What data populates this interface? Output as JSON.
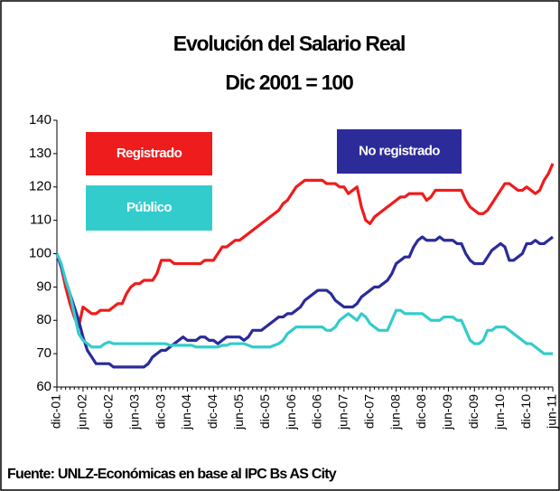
{
  "chart_data": {
    "type": "line",
    "title": "Evolución del Salario Real",
    "subtitle": "Dic 2001 = 100",
    "source": "Fuente: UNLZ-Económicas en base al IPC Bs AS City",
    "ylim": [
      60,
      140
    ],
    "yticks": [
      60,
      70,
      80,
      90,
      100,
      110,
      120,
      130,
      140
    ],
    "categories": [
      "dic-01",
      null,
      null,
      null,
      null,
      null,
      "jun-02",
      null,
      null,
      null,
      null,
      null,
      "dic-02",
      null,
      null,
      null,
      null,
      null,
      "jun-03",
      null,
      null,
      null,
      null,
      null,
      "dic-03",
      null,
      null,
      null,
      null,
      null,
      "jun-04",
      null,
      null,
      null,
      null,
      null,
      "dic-04",
      null,
      null,
      null,
      null,
      null,
      "jun-05",
      null,
      null,
      null,
      null,
      null,
      "dic-05",
      null,
      null,
      null,
      null,
      null,
      "jun-06",
      null,
      null,
      null,
      null,
      null,
      "dic-06",
      null,
      null,
      null,
      null,
      null,
      "jun-07",
      null,
      null,
      null,
      null,
      null,
      "dic-07",
      null,
      null,
      null,
      null,
      null,
      "jun-08",
      null,
      null,
      null,
      null,
      null,
      "dic-08",
      null,
      null,
      null,
      null,
      null,
      "jun-09",
      null,
      null,
      null,
      null,
      null,
      "dic-09",
      null,
      null,
      null,
      null,
      null,
      "jun-10",
      null,
      null,
      null,
      null,
      null,
      "dic-10",
      null,
      null,
      null,
      null,
      null,
      "jun-11"
    ],
    "series": [
      {
        "name": "Registrado",
        "color": "#ee1c1c",
        "values": [
          100,
          96,
          90,
          85,
          81,
          78,
          84,
          83,
          82,
          82,
          83,
          83,
          83,
          84,
          85,
          85,
          88,
          90,
          91,
          91,
          92,
          92,
          92,
          94,
          98,
          98,
          98,
          97,
          97,
          97,
          97,
          97,
          97,
          97,
          98,
          98,
          98,
          100,
          102,
          102,
          103,
          104,
          104,
          105,
          106,
          107,
          108,
          109,
          110,
          111,
          112,
          113,
          115,
          116,
          118,
          120,
          121,
          122,
          122,
          122,
          122,
          122,
          121,
          121,
          121,
          120,
          120,
          118,
          119,
          120,
          114,
          110,
          109,
          111,
          112,
          113,
          114,
          115,
          116,
          117,
          117,
          118,
          118,
          118,
          118,
          116,
          117,
          119,
          119,
          119,
          119,
          119,
          119,
          119,
          116,
          114,
          113,
          112,
          112,
          113,
          115,
          117,
          119,
          121,
          121,
          120,
          119,
          119,
          120,
          119,
          118,
          119,
          122,
          124,
          127
        ]
      },
      {
        "name": "No registrado",
        "color": "#2b2b99",
        "values": [
          100,
          96,
          92,
          88,
          84,
          80,
          75,
          71,
          69,
          67,
          67,
          67,
          67,
          66,
          66,
          66,
          66,
          66,
          66,
          66,
          66,
          67,
          69,
          70,
          71,
          71,
          72,
          73,
          74,
          75,
          74,
          74,
          74,
          75,
          75,
          74,
          74,
          73,
          74,
          75,
          75,
          75,
          75,
          74,
          75,
          77,
          77,
          77,
          78,
          79,
          80,
          81,
          81,
          82,
          82,
          83,
          84,
          86,
          87,
          88,
          89,
          89,
          89,
          88,
          86,
          85,
          84,
          84,
          84,
          85,
          87,
          88,
          89,
          90,
          90,
          91,
          92,
          94,
          97,
          98,
          99,
          99,
          102,
          104,
          105,
          104,
          104,
          104,
          105,
          104,
          104,
          104,
          103,
          103,
          100,
          98,
          97,
          97,
          97,
          99,
          101,
          102,
          103,
          102,
          98,
          98,
          99,
          100,
          103,
          103,
          104,
          103,
          103,
          104,
          105
        ]
      },
      {
        "name": "Público",
        "color": "#33cccc",
        "values": [
          100,
          97,
          92,
          88,
          82,
          76,
          74,
          73,
          72,
          72,
          72,
          73,
          73.5,
          73,
          73,
          73,
          73,
          73,
          73,
          73,
          73,
          73,
          73,
          73,
          73,
          73,
          72.5,
          72.5,
          72.5,
          72.5,
          72.5,
          72.5,
          72,
          72,
          72,
          72,
          72,
          72,
          72.5,
          72.5,
          73,
          73,
          73,
          73,
          72.5,
          72,
          72,
          72,
          72,
          72,
          72.5,
          73,
          74,
          76,
          77,
          78,
          78,
          78,
          78,
          78,
          78,
          78,
          77,
          77,
          78,
          80,
          81,
          82,
          81,
          80,
          82,
          81,
          79,
          78,
          77,
          77,
          77,
          80,
          83,
          83,
          82,
          82,
          82,
          82,
          82,
          81,
          80,
          80,
          80,
          81,
          81,
          81,
          80,
          80,
          77,
          74,
          73,
          73,
          74,
          77,
          77,
          78,
          78,
          78,
          77,
          76,
          75,
          74,
          73,
          73,
          72,
          71,
          70,
          70,
          70
        ]
      }
    ]
  }
}
